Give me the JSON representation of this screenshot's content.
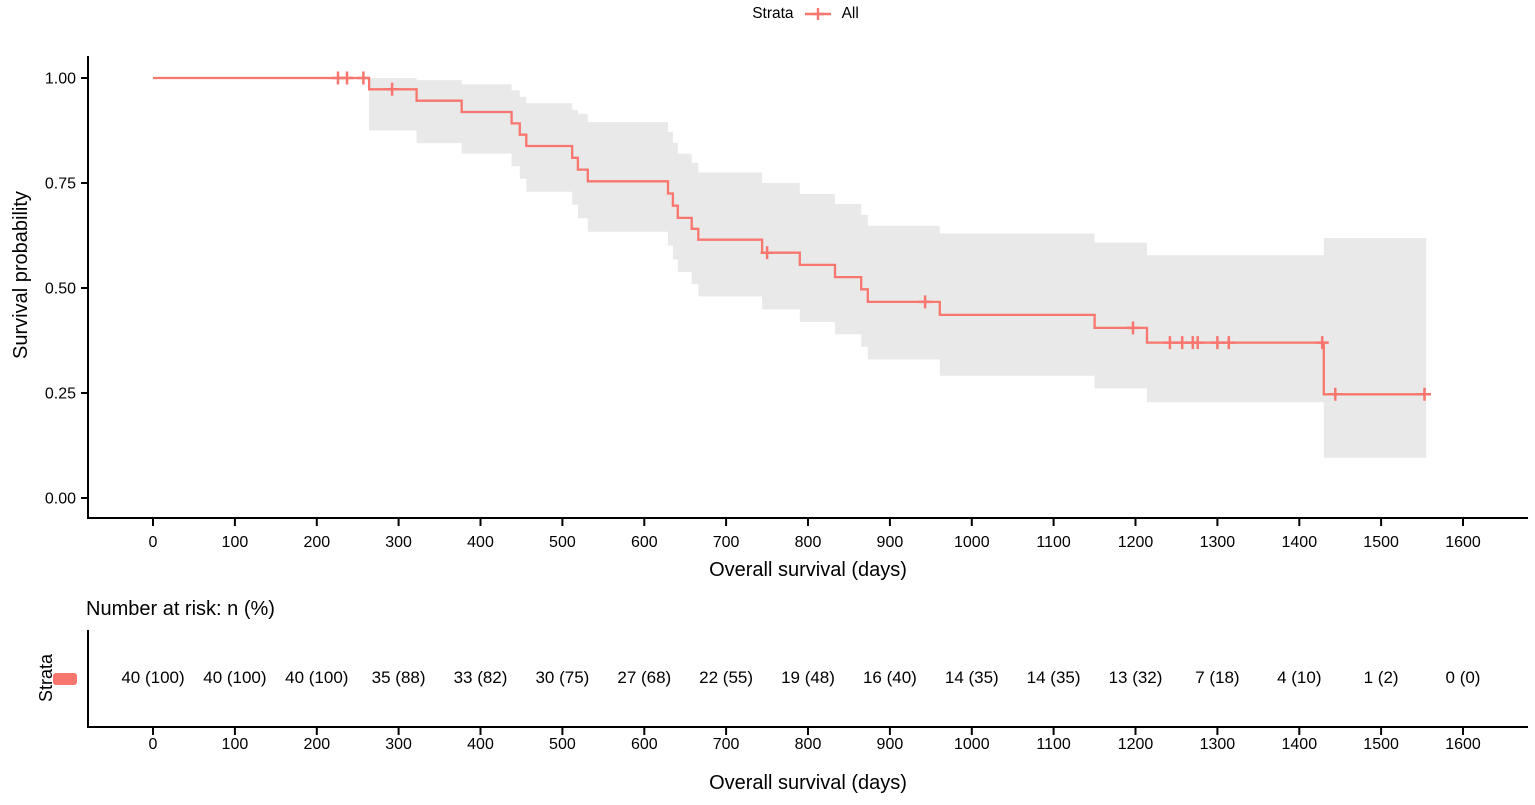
{
  "chart_data": {
    "type": "line",
    "subtype": "kaplan-meier-step-curve-with-confidence-band",
    "title": "",
    "xlabel": "Overall survival (days)",
    "ylabel": "Survival probability",
    "xlim": [
      0,
      1600
    ],
    "ylim": [
      0,
      1
    ],
    "grid": false,
    "x_ticks": [
      0,
      100,
      200,
      300,
      400,
      500,
      600,
      700,
      800,
      900,
      1000,
      1100,
      1200,
      1300,
      1400,
      1500,
      1600
    ],
    "y_ticks": [
      {
        "value": 1.0,
        "label": "1.00"
      },
      {
        "value": 0.75,
        "label": "0.75"
      },
      {
        "value": 0.5,
        "label": "0.50"
      },
      {
        "value": 0.25,
        "label": "0.25"
      },
      {
        "value": 0.0,
        "label": "0.00"
      }
    ],
    "legend": {
      "title": "Strata",
      "position": "top",
      "entries": [
        "All"
      ]
    },
    "series": [
      {
        "name": "All",
        "color": "#F8766D",
        "ci_fill": "#E9E9E9",
        "steps_format": [
          "time_days",
          "survival",
          "ci_lower",
          "ci_upper"
        ],
        "steps": [
          [
            0,
            1.0,
            null,
            null
          ],
          [
            264,
            0.973,
            0.875,
            1.0
          ],
          [
            322,
            0.946,
            0.845,
            0.995
          ],
          [
            377,
            0.919,
            0.82,
            0.985
          ],
          [
            438,
            0.892,
            0.79,
            0.971
          ],
          [
            448,
            0.865,
            0.76,
            0.955
          ],
          [
            456,
            0.838,
            0.729,
            0.94
          ],
          [
            512,
            0.81,
            0.698,
            0.924
          ],
          [
            519,
            0.782,
            0.666,
            0.915
          ],
          [
            531,
            0.754,
            0.634,
            0.895
          ],
          [
            629,
            0.725,
            0.601,
            0.872
          ],
          [
            635,
            0.696,
            0.568,
            0.846
          ],
          [
            641,
            0.667,
            0.538,
            0.82
          ],
          [
            658,
            0.641,
            0.509,
            0.798
          ],
          [
            666,
            0.615,
            0.48,
            0.775
          ],
          [
            744,
            0.584,
            0.449,
            0.75
          ],
          [
            790,
            0.555,
            0.419,
            0.724
          ],
          [
            833,
            0.526,
            0.39,
            0.7
          ],
          [
            865,
            0.497,
            0.36,
            0.674
          ],
          [
            873,
            0.467,
            0.33,
            0.648
          ],
          [
            961,
            0.436,
            0.291,
            0.63
          ],
          [
            1150,
            0.405,
            0.261,
            0.608
          ],
          [
            1214,
            0.37,
            0.228,
            0.578
          ],
          [
            1430,
            0.247,
            0.096,
            0.619
          ]
        ],
        "end_time": 1555,
        "censor_marks_format": [
          "time_days",
          "survival"
        ],
        "censor_marks": [
          [
            226,
            1.0
          ],
          [
            237,
            1.0
          ],
          [
            257,
            1.0
          ],
          [
            292,
            0.973
          ],
          [
            750,
            0.584
          ],
          [
            943,
            0.467
          ],
          [
            1197,
            0.405
          ],
          [
            1242,
            0.37
          ],
          [
            1257,
            0.37
          ],
          [
            1270,
            0.37
          ],
          [
            1276,
            0.37
          ],
          [
            1300,
            0.37
          ],
          [
            1314,
            0.37
          ],
          [
            1428,
            0.37
          ],
          [
            1444,
            0.247
          ],
          [
            1553,
            0.247
          ]
        ]
      }
    ],
    "risk_table": {
      "title": "Number at risk: n (%)",
      "axis_label": "Strata",
      "xlabel": "Overall survival (days)",
      "rows": [
        {
          "name": "All",
          "color": "#F8766D",
          "values": [
            "40 (100)",
            "40 (100)",
            "40 (100)",
            "35 (88)",
            "33 (82)",
            "30 (75)",
            "27 (68)",
            "22 (55)",
            "19 (48)",
            "16 (40)",
            "14 (35)",
            "14 (35)",
            "13 (32)",
            "7 (18)",
            "4 (10)",
            "1 (2)",
            "0 (0)"
          ]
        }
      ]
    }
  }
}
